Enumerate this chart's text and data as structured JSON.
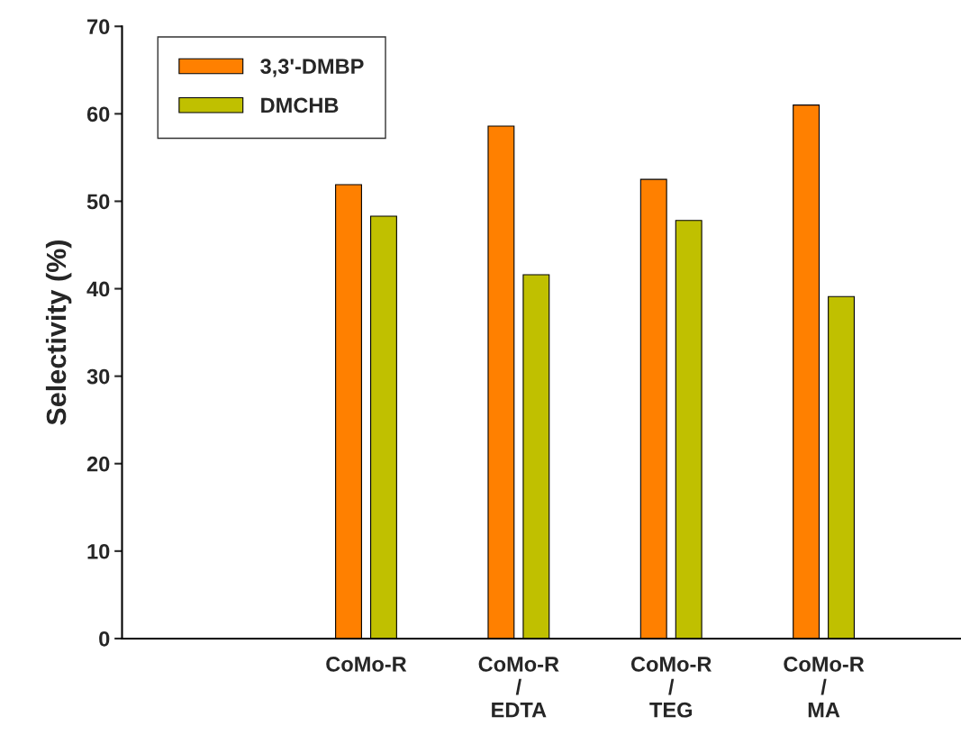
{
  "chart_data": {
    "type": "bar",
    "ylabel": "Selectivity (%)",
    "categories": [
      null,
      "CoMo-R",
      "CoMo-R\n/\nEDTA",
      "CoMo-R\n/\nTEG",
      "CoMo-R\n/\nMA"
    ],
    "series": [
      {
        "name": "3,3'-DMBP",
        "color": "#ff8000",
        "values": [
          null,
          51.9,
          58.6,
          52.5,
          61.0
        ]
      },
      {
        "name": "DMCHB",
        "color": "#c0c000",
        "values": [
          null,
          48.3,
          41.6,
          47.8,
          39.1
        ]
      }
    ],
    "ylim": [
      0,
      70
    ],
    "yticks": [
      0,
      10,
      20,
      30,
      40,
      50,
      60,
      70
    ],
    "grid": false,
    "legend": "top left"
  }
}
